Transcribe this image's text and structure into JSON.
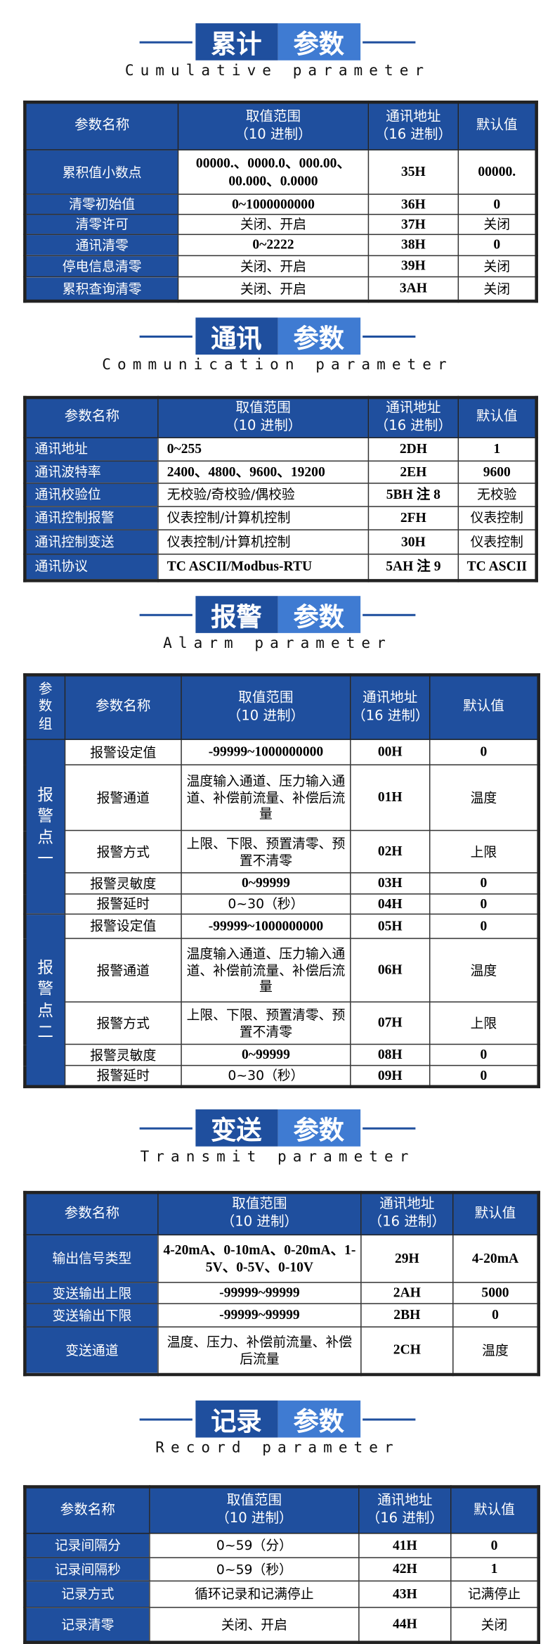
{
  "headers": {
    "group": "参数组",
    "name": "参数名称",
    "range": "取值范围",
    "range_sub": "（10 进制）",
    "addr": "通讯地址",
    "addr_sub": "（16 进制）",
    "default": "默认值"
  },
  "sections": [
    {
      "title_a": "累计",
      "title_b": "参数",
      "subtitle": "Cumulative parameter",
      "rows": [
        {
          "name": "累积值小数点",
          "range": "00000.、0000.0、000.00、00.000、0.0000",
          "addr": "35H",
          "default": "00000."
        },
        {
          "name": "清零初始值",
          "range": "0~1000000000",
          "addr": "36H",
          "default": "0"
        },
        {
          "name": "清零许可",
          "range": "关闭、开启",
          "addr": "37H",
          "default": "关闭"
        },
        {
          "name": "通讯清零",
          "range": "0~2222",
          "addr": "38H",
          "default": "0"
        },
        {
          "name": "停电信息清零",
          "range": "关闭、开启",
          "addr": "39H",
          "default": "关闭"
        },
        {
          "name": "累积查询清零",
          "range": "关闭、开启",
          "addr": "3AH",
          "default": "关闭"
        }
      ]
    },
    {
      "title_a": "通讯",
      "title_b": "参数",
      "subtitle": "Communication parameter",
      "rows": [
        {
          "name": "通讯地址",
          "range": "0~255",
          "addr": "2DH",
          "default": "1"
        },
        {
          "name": "通讯波特率",
          "range": "2400、4800、9600、19200",
          "addr": "2EH",
          "default": "9600"
        },
        {
          "name": "通讯校验位",
          "range": "无校验/奇校验/偶校验",
          "addr": "5BH 注 8",
          "default": "无校验"
        },
        {
          "name": "通讯控制报警",
          "range": "仪表控制/计算机控制",
          "addr": "2FH",
          "default": "仪表控制"
        },
        {
          "name": "通讯控制变送",
          "range": "仪表控制/计算机控制",
          "addr": "30H",
          "default": "仪表控制"
        },
        {
          "name": "通讯协议",
          "range": "TC ASCII/Modbus-RTU",
          "addr": "5AH 注 9",
          "default": "TC ASCII"
        }
      ]
    },
    {
      "title_a": "报警",
      "title_b": "参数",
      "subtitle": "Alarm parameter",
      "groups": [
        "报警点一",
        "报警点二"
      ],
      "rows": [
        {
          "name": "报警设定值",
          "range": "-99999~1000000000",
          "addr": "00H",
          "default": "0"
        },
        {
          "name": "报警通道",
          "range": "温度输入通道、压力输入通道、补偿前流量、补偿后流量",
          "addr": "01H",
          "default": "温度"
        },
        {
          "name": "报警方式",
          "range": "上限、下限、预置清零、预置不清零",
          "addr": "02H",
          "default": "上限"
        },
        {
          "name": "报警灵敏度",
          "range": "0~99999",
          "addr": "03H",
          "default": "0"
        },
        {
          "name": "报警延时",
          "range": "0~30（秒）",
          "addr": "04H",
          "default": "0"
        },
        {
          "name": "报警设定值",
          "range": "-99999~1000000000",
          "addr": "05H",
          "default": "0"
        },
        {
          "name": "报警通道",
          "range": "温度输入通道、压力输入通道、补偿前流量、补偿后流量",
          "addr": "06H",
          "default": "温度"
        },
        {
          "name": "报警方式",
          "range": "上限、下限、预置清零、预置不清零",
          "addr": "07H",
          "default": "上限"
        },
        {
          "name": "报警灵敏度",
          "range": "0~99999",
          "addr": "08H",
          "default": "0"
        },
        {
          "name": "报警延时",
          "range": "0~30（秒）",
          "addr": "09H",
          "default": "0"
        }
      ]
    },
    {
      "title_a": "变送",
      "title_b": "参数",
      "subtitle": "Transmit parameter",
      "rows": [
        {
          "name": "输出信号类型",
          "range": "4-20mA、0-10mA、0-20mA、1-5V、0-5V、0-10V",
          "addr": "29H",
          "default": "4-20mA"
        },
        {
          "name": "变送输出上限",
          "range": "-99999~99999",
          "addr": "2AH",
          "default": "5000"
        },
        {
          "name": "变送输出下限",
          "range": "-99999~99999",
          "addr": "2BH",
          "default": "0"
        },
        {
          "name": "变送通道",
          "range": "温度、压力、补偿前流量、补偿后流量",
          "addr": "2CH",
          "default": "温度"
        }
      ]
    },
    {
      "title_a": "记录",
      "title_b": "参数",
      "subtitle": "Record parameter",
      "rows": [
        {
          "name": "记录间隔分",
          "range": "0~59（分）",
          "addr": "41H",
          "default": "0"
        },
        {
          "name": "记录间隔秒",
          "range": "0~59（秒）",
          "addr": "42H",
          "default": "1"
        },
        {
          "name": "记录方式",
          "range": "循环记录和记满停止",
          "addr": "43H",
          "default": "记满停止"
        },
        {
          "name": "记录清零",
          "range": "关闭、开启",
          "addr": "44H",
          "default": "关闭"
        }
      ]
    }
  ]
}
